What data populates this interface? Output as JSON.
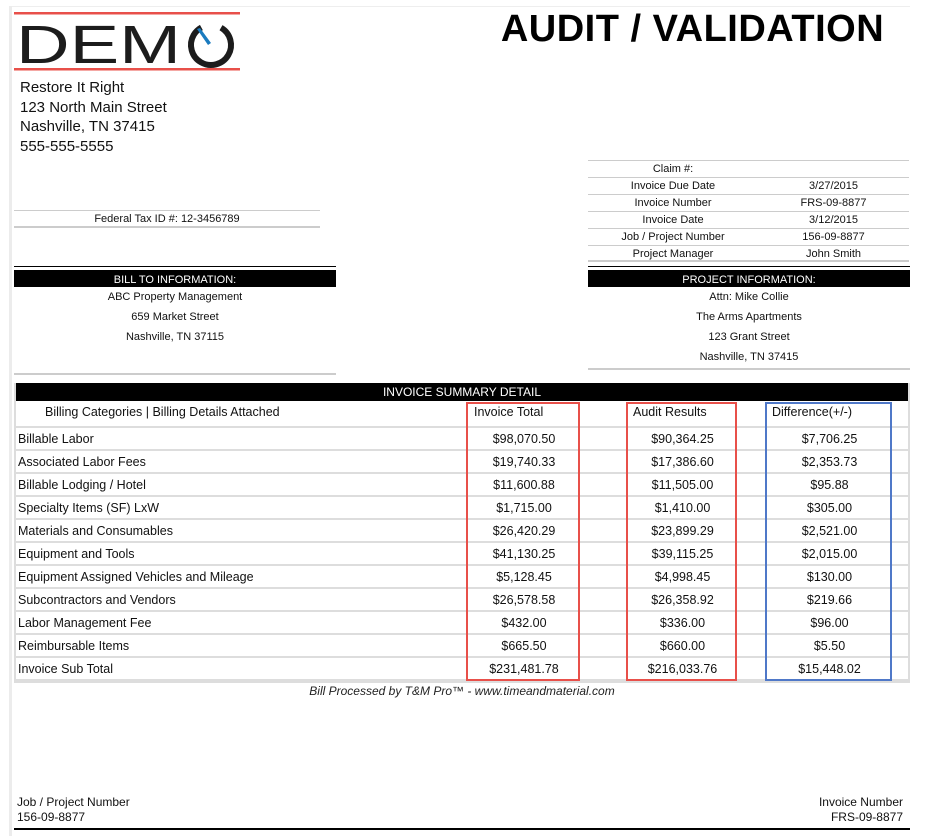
{
  "logo": {
    "text": "DEMO",
    "accent_color": "#e8504a",
    "needle_color": "#1a7bbf"
  },
  "title": "AUDIT / VALIDATION",
  "company": {
    "name": "Restore It Right",
    "street": "123 North Main Street",
    "city": "Nashville, TN 37415",
    "phone": "555-555-5555"
  },
  "tax_id": "Federal Tax ID #: 12-3456789",
  "meta": [
    {
      "label": "Claim #:",
      "value": ""
    },
    {
      "label": "Invoice Due Date",
      "value": "3/27/2015"
    },
    {
      "label": "Invoice Number",
      "value": "FRS-09-8877"
    },
    {
      "label": "Invoice Date",
      "value": "3/12/2015"
    },
    {
      "label": "Job / Project Number",
      "value": "156-09-8877"
    },
    {
      "label": "Project Manager",
      "value": "John Smith"
    }
  ],
  "bill_to": {
    "heading": "BILL TO INFORMATION:",
    "lines": [
      "ABC Property Management",
      "659 Market Street",
      "Nashville, TN 37115"
    ]
  },
  "project_info": {
    "heading": "PROJECT INFORMATION:",
    "lines": [
      "Attn: Mike Collie",
      "The Arms Apartments",
      "123  Grant Street",
      "Nashville, TN 37415"
    ]
  },
  "summary": {
    "title": "INVOICE SUMMARY DETAIL",
    "columns": [
      "Billing Categories | Billing Details Attached",
      "Invoice Total",
      "Audit Results",
      "Difference(+/-)"
    ],
    "rows": [
      [
        "Billable Labor",
        "$98,070.50",
        "$90,364.25",
        "$7,706.25"
      ],
      [
        "Associated Labor Fees",
        "$19,740.33",
        "$17,386.60",
        "$2,353.73"
      ],
      [
        "Billable Lodging / Hotel",
        "$11,600.88",
        "$11,505.00",
        "$95.88"
      ],
      [
        "Specialty Items (SF) LxW",
        "$1,715.00",
        "$1,410.00",
        "$305.00"
      ],
      [
        "Materials and Consumables",
        "$26,420.29",
        "$23,899.29",
        "$2,521.00"
      ],
      [
        "Equipment and Tools",
        "$41,130.25",
        "$39,115.25",
        "$2,015.00"
      ],
      [
        "Equipment Assigned Vehicles and Mileage",
        "$5,128.45",
        "$4,998.45",
        "$130.00"
      ],
      [
        "Subcontractors and Vendors",
        "$26,578.58",
        "$26,358.92",
        "$219.66"
      ],
      [
        "Labor Management Fee",
        "$432.00",
        "$336.00",
        "$96.00"
      ],
      [
        "Reimbursable Items",
        "$665.50",
        "$660.00",
        "$5.50"
      ],
      [
        "Invoice Sub Total",
        "$231,481.78",
        "$216,033.76",
        "$15,448.02"
      ]
    ],
    "highlight_colors": {
      "invoice_total": "#e8504a",
      "audit_results": "#e8504a",
      "difference": "#4f78c8"
    }
  },
  "processed_by": "Bill Processed by T&M Pro™ - www.timeandmaterial.com",
  "footer": {
    "left_label": "Job / Project Number",
    "left_value": "156-09-8877",
    "right_label": "Invoice Number",
    "right_value": "FRS-09-8877"
  }
}
